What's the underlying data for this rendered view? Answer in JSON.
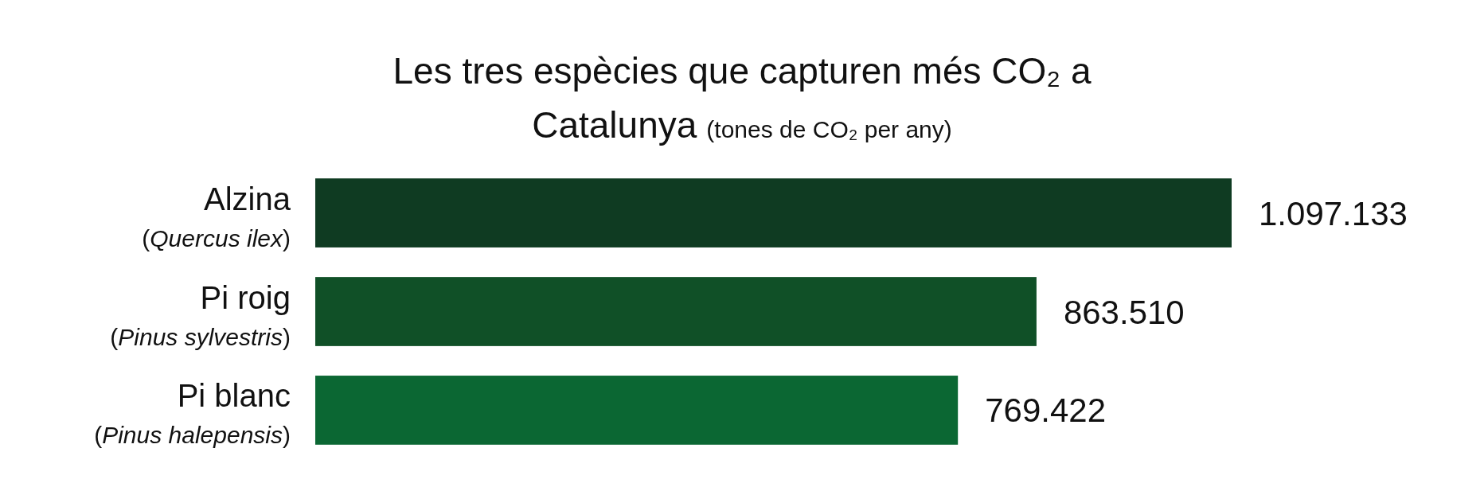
{
  "chart_data": {
    "type": "bar",
    "orientation": "horizontal",
    "title": "Les tres espècies que capturen més CO₂ a Catalunya",
    "subtitle": "(tones de CO₂ per any)",
    "categories": [
      "Alzina (Quercus ilex)",
      "Pi roig (Pinus sylvestris)",
      "Pi blanc (Pinus halepensis)"
    ],
    "values": [
      1097133,
      863510,
      769422
    ],
    "colors": [
      "#0f3b22",
      "#105027",
      "#0b6733"
    ],
    "value_labels": [
      "1.097.133",
      "863.510",
      "769.422"
    ]
  }
}
